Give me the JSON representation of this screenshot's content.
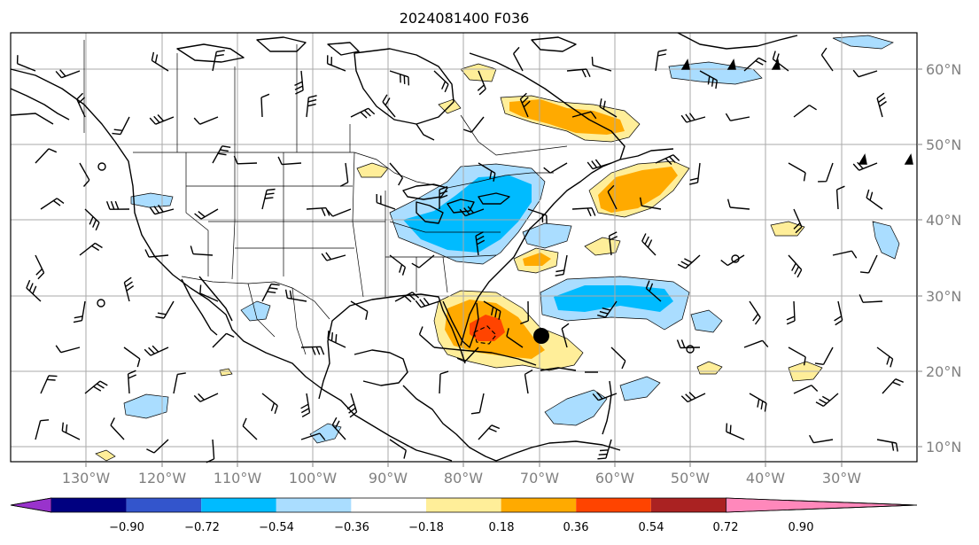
{
  "title": "2024081400 F036",
  "lon_labels": [
    "130°W",
    "120°W",
    "110°W",
    "100°W",
    "90°W",
    "80°W",
    "70°W",
    "60°W",
    "50°W",
    "40°W",
    "30°W"
  ],
  "lat_labels": [
    "60°N",
    "50°N",
    "40°N",
    "30°N",
    "20°N",
    "10°N"
  ],
  "colorbar": {
    "ticks": [
      "−0.90",
      "−0.72",
      "−0.54",
      "−0.36",
      "−0.18",
      "0.18",
      "0.36",
      "0.54",
      "0.72",
      "0.90"
    ],
    "colors": [
      "#9933cc",
      "#000080",
      "#3355cc",
      "#00bbff",
      "#aaddff",
      "#ffffff",
      "#ffee99",
      "#ffaa00",
      "#ff4400",
      "#aa2222",
      "#ff88bb"
    ]
  },
  "fill_colors": {
    "light_blue": "#aaddff",
    "blue": "#00bbff",
    "light_orange": "#ffee99",
    "orange": "#ffaa00",
    "red_orange": "#ff4400"
  },
  "storm_marker": {
    "label": "tropical-cyclone",
    "lon": -70,
    "lat": 24.5
  }
}
